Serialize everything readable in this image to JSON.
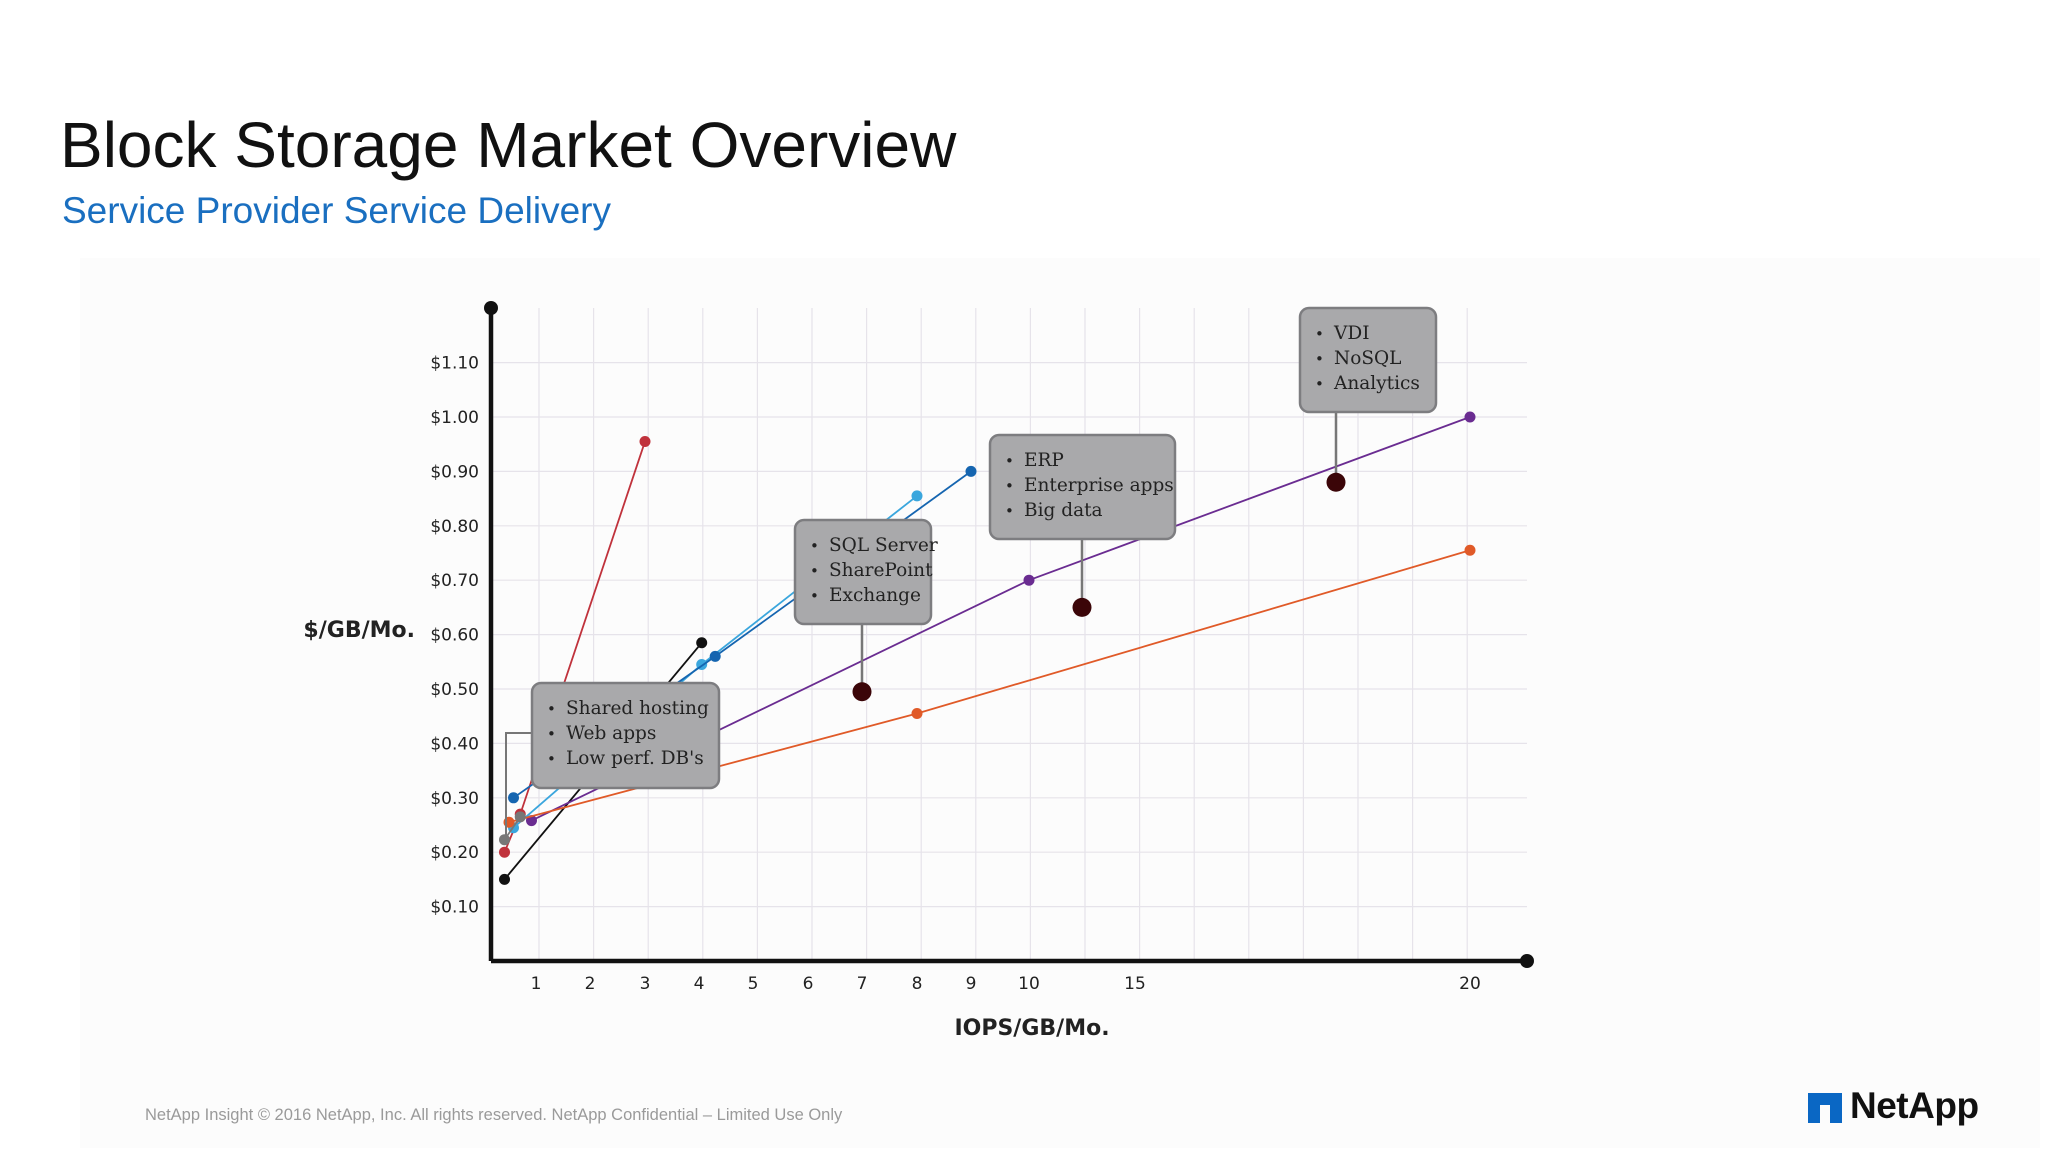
{
  "title": "Block Storage Market Overview",
  "subtitle": "Service Provider Service Delivery",
  "footer": "NetApp Insight  © 2016 NetApp, Inc. All rights reserved. NetApp Confidential – Limited Use Only",
  "logo": {
    "text": "NetApp",
    "icon": "netapp-logo-icon"
  },
  "chart_data": {
    "type": "line",
    "title": "",
    "xlabel": "IOPS/GB/Mo.",
    "ylabel": "$/GB/Mo.",
    "x_ticks": [
      "1",
      "2",
      "3",
      "4",
      "5",
      "6",
      "7",
      "8",
      "9",
      "10",
      "15",
      "20"
    ],
    "y_ticks": [
      "$0.10",
      "$0.20",
      "$0.30",
      "$0.40",
      "$0.50",
      "$0.60",
      "$0.70",
      "$0.80",
      "$0.90",
      "$1.00",
      "$1.10"
    ],
    "ylim": [
      0,
      1.2
    ],
    "grid": true,
    "series": [
      {
        "color": "#c0323c",
        "points": [
          [
            0.3,
            0.2
          ],
          [
            0.65,
            0.27
          ],
          [
            3.0,
            0.955
          ]
        ]
      },
      {
        "color": "#111111",
        "points": [
          [
            0.3,
            0.15
          ],
          [
            4.05,
            0.585
          ]
        ]
      },
      {
        "color": "#3aa6dd",
        "points": [
          [
            0.5,
            0.245
          ],
          [
            4.05,
            0.545
          ],
          [
            8.0,
            0.855
          ]
        ]
      },
      {
        "color": "#1565b0",
        "points": [
          [
            0.5,
            0.3
          ],
          [
            4.3,
            0.56
          ],
          [
            9.0,
            0.9
          ]
        ]
      },
      {
        "color": "#6a2c91",
        "points": [
          [
            0.9,
            0.258
          ],
          [
            10.0,
            0.7
          ],
          [
            20.0,
            1.0
          ]
        ]
      },
      {
        "color": "#e05a28",
        "points": [
          [
            0.4,
            0.255
          ],
          [
            8.0,
            0.455
          ],
          [
            20.0,
            0.755
          ]
        ]
      },
      {
        "color": "#777777",
        "points": [
          [
            0.3,
            0.223
          ],
          [
            0.65,
            0.265
          ]
        ]
      }
    ],
    "callouts": [
      {
        "lines": [
          "Shared hosting",
          "Web apps",
          "Low perf. DB's"
        ],
        "leader": "bracket"
      },
      {
        "lines": [
          "SQL Server",
          "SharePoint",
          "Exchange"
        ],
        "marker": [
          7.0,
          0.495
        ]
      },
      {
        "lines": [
          "ERP",
          "Enterprise apps",
          "Big data"
        ],
        "marker": [
          12.5,
          0.65
        ]
      },
      {
        "lines": [
          "VDI",
          "NoSQL",
          "Analytics"
        ],
        "marker": [
          18.0,
          0.88
        ]
      }
    ],
    "colors": {
      "axis": "#111111",
      "grid": "#e6e3ea",
      "callout_fill": "#a9a9ab",
      "callout_border": "#7d7d80",
      "marker": "#3b0508"
    }
  }
}
